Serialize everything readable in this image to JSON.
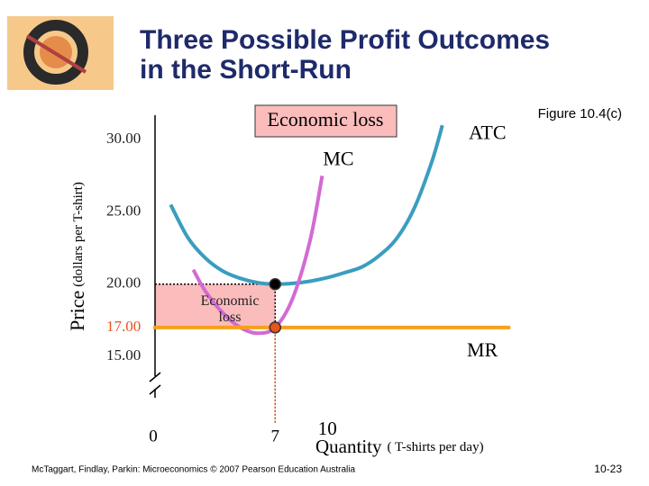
{
  "chart_data": {
    "type": "line",
    "title": "Three Possible Profit Outcomes in the Short-Run",
    "figure_label": "Figure 10.4(c)",
    "annotation": "Economic loss",
    "y_label": "Price",
    "y_label_unit": "(dollars per T-shirt)",
    "x_label": "Quantity",
    "x_label_unit": "( T-shirts per day)",
    "xlim": [
      0,
      20.7
    ],
    "ylim": [
      13.5,
      31.7
    ],
    "xticks": [
      0,
      7,
      10
    ],
    "yticks": [
      {
        "value": 30,
        "label": "30.00"
      },
      {
        "value": 25,
        "label": "25.00"
      },
      {
        "value": 20,
        "label": "20.00"
      },
      {
        "value": 17,
        "label": "17.00"
      },
      {
        "value": 15,
        "label": "15.00"
      }
    ],
    "series": [
      {
        "name": "ATC",
        "color": "#3a9dc0",
        "x": [
          1,
          2,
          3,
          4,
          5,
          6,
          7,
          8,
          9,
          10,
          11,
          12,
          13,
          14,
          15,
          16,
          16.6
        ],
        "values": [
          25.5,
          23.2,
          21.8,
          20.9,
          20.4,
          20.1,
          20,
          20.05,
          20.2,
          20.45,
          20.8,
          21.2,
          22,
          23.2,
          25.3,
          28.5,
          31
        ]
      },
      {
        "name": "MC",
        "color": "#d26ad4",
        "x": [
          2.3,
          3,
          4,
          5,
          6,
          7,
          8,
          9,
          9.7
        ],
        "values": [
          21,
          19.5,
          18,
          17,
          16.6,
          17,
          19,
          23,
          27.5
        ]
      },
      {
        "name": "MR",
        "color": "#f5a11a",
        "x": [
          0,
          20.5
        ],
        "values": [
          17,
          17
        ]
      }
    ],
    "loss_area": {
      "label": "Economic loss",
      "color": "#fbbcbc",
      "quantity": 7,
      "price_top": 20,
      "price_bottom": 17
    },
    "points": [
      {
        "x": 7,
        "y": 20,
        "color": "#000000"
      },
      {
        "x": 7,
        "y": 17,
        "color": "#e8531f"
      }
    ],
    "footer": "McTaggart, Findlay, Parkin: Microeconomics © 2007 Pearson Education Australia",
    "page_number": "10-23"
  }
}
